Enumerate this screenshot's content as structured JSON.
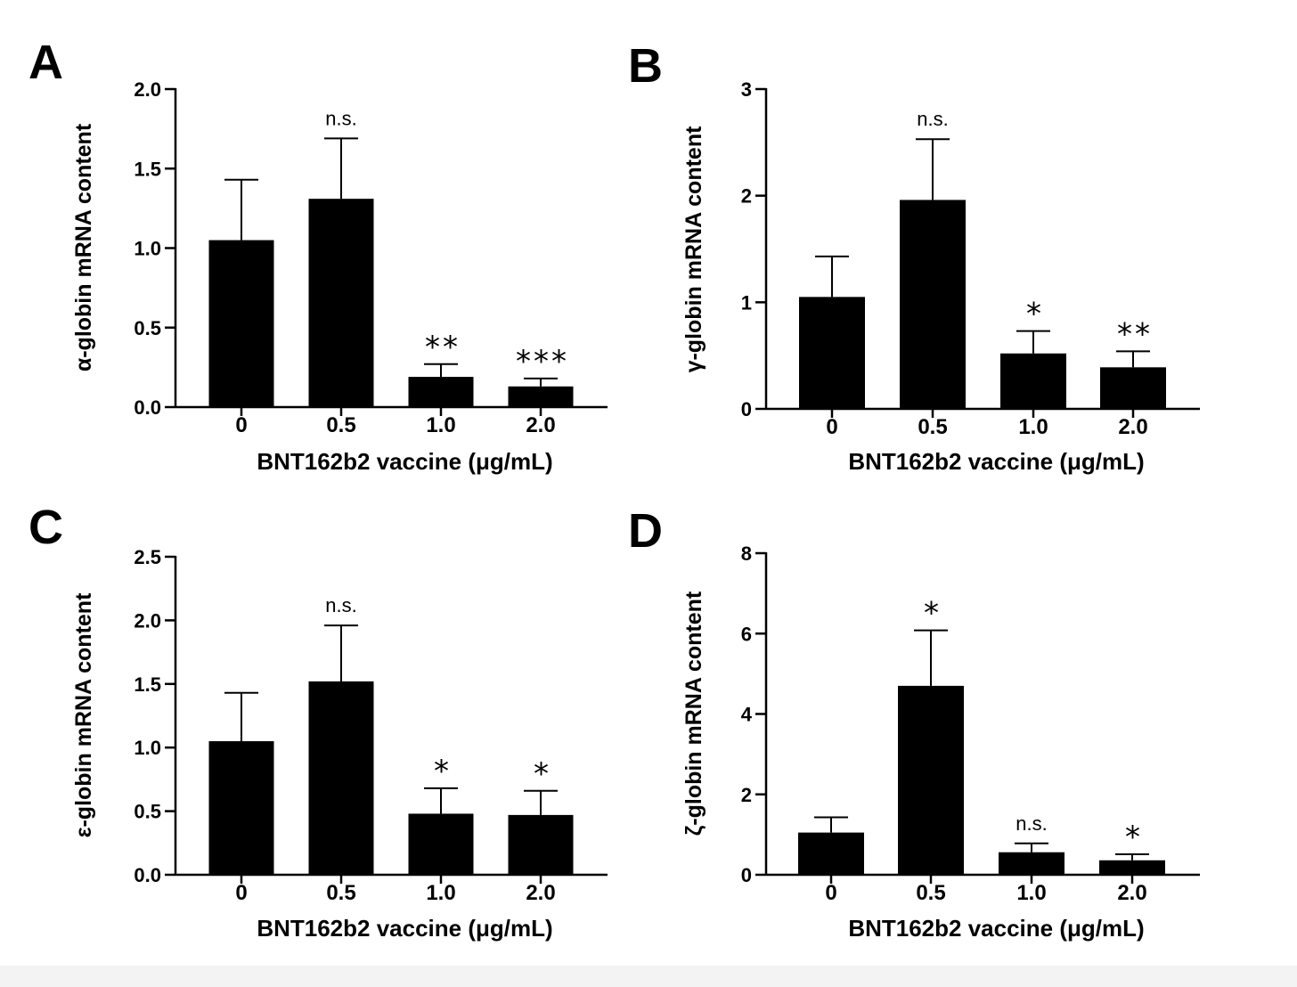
{
  "chart_data": [
    {
      "type": "bar",
      "panel": "A",
      "categories": [
        "0",
        "0.5",
        "1.0",
        "2.0"
      ],
      "values": [
        1.05,
        1.31,
        0.19,
        0.13
      ],
      "errors": [
        0.38,
        0.38,
        0.08,
        0.05
      ],
      "significance": [
        "",
        "n.s.",
        "**",
        "***"
      ],
      "xlabel": "BNT162b2 vaccine (μg/mL)",
      "ylabel": "α-globin mRNA content",
      "ylim": [
        0,
        2.0
      ],
      "yticks": [
        0.0,
        0.5,
        1.0,
        1.5,
        2.0
      ],
      "ytick_labels": [
        "0.0",
        "0.5",
        "1.0",
        "1.5",
        "2.0"
      ],
      "color": "#000000"
    },
    {
      "type": "bar",
      "panel": "B",
      "categories": [
        "0",
        "0.5",
        "1.0",
        "2.0"
      ],
      "values": [
        1.05,
        1.96,
        0.52,
        0.39
      ],
      "errors": [
        0.38,
        0.57,
        0.21,
        0.15
      ],
      "significance": [
        "",
        "n.s.",
        "*",
        "**"
      ],
      "xlabel": "BNT162b2 vaccine (μg/mL)",
      "ylabel": "γ-globin mRNA content",
      "ylim": [
        0,
        3
      ],
      "yticks": [
        0,
        1,
        2,
        3
      ],
      "ytick_labels": [
        "0",
        "1",
        "2",
        "3"
      ],
      "color": "#000000"
    },
    {
      "type": "bar",
      "panel": "C",
      "categories": [
        "0",
        "0.5",
        "1.0",
        "2.0"
      ],
      "values": [
        1.05,
        1.52,
        0.48,
        0.47
      ],
      "errors": [
        0.38,
        0.44,
        0.2,
        0.19
      ],
      "significance": [
        "",
        "n.s.",
        "*",
        "*"
      ],
      "xlabel": "BNT162b2 vaccine (μg/mL)",
      "ylabel": "ε-globin mRNA content",
      "ylim": [
        0,
        2.5
      ],
      "yticks": [
        0.0,
        0.5,
        1.0,
        1.5,
        2.0,
        2.5
      ],
      "ytick_labels": [
        "0.0",
        "0.5",
        "1.0",
        "1.5",
        "2.0",
        "2.5"
      ],
      "color": "#000000"
    },
    {
      "type": "bar",
      "panel": "D",
      "categories": [
        "0",
        "0.5",
        "1.0",
        "2.0"
      ],
      "values": [
        1.05,
        4.7,
        0.56,
        0.36
      ],
      "errors": [
        0.38,
        1.38,
        0.22,
        0.15
      ],
      "significance": [
        "",
        "*",
        "n.s.",
        "*"
      ],
      "xlabel": "BNT162b2 vaccine (μg/mL)",
      "ylabel": "ζ-globin mRNA content",
      "ylim": [
        0,
        8
      ],
      "yticks": [
        0,
        2,
        4,
        6,
        8
      ],
      "ytick_labels": [
        "0",
        "2",
        "4",
        "6",
        "8"
      ],
      "color": "#000000"
    }
  ]
}
